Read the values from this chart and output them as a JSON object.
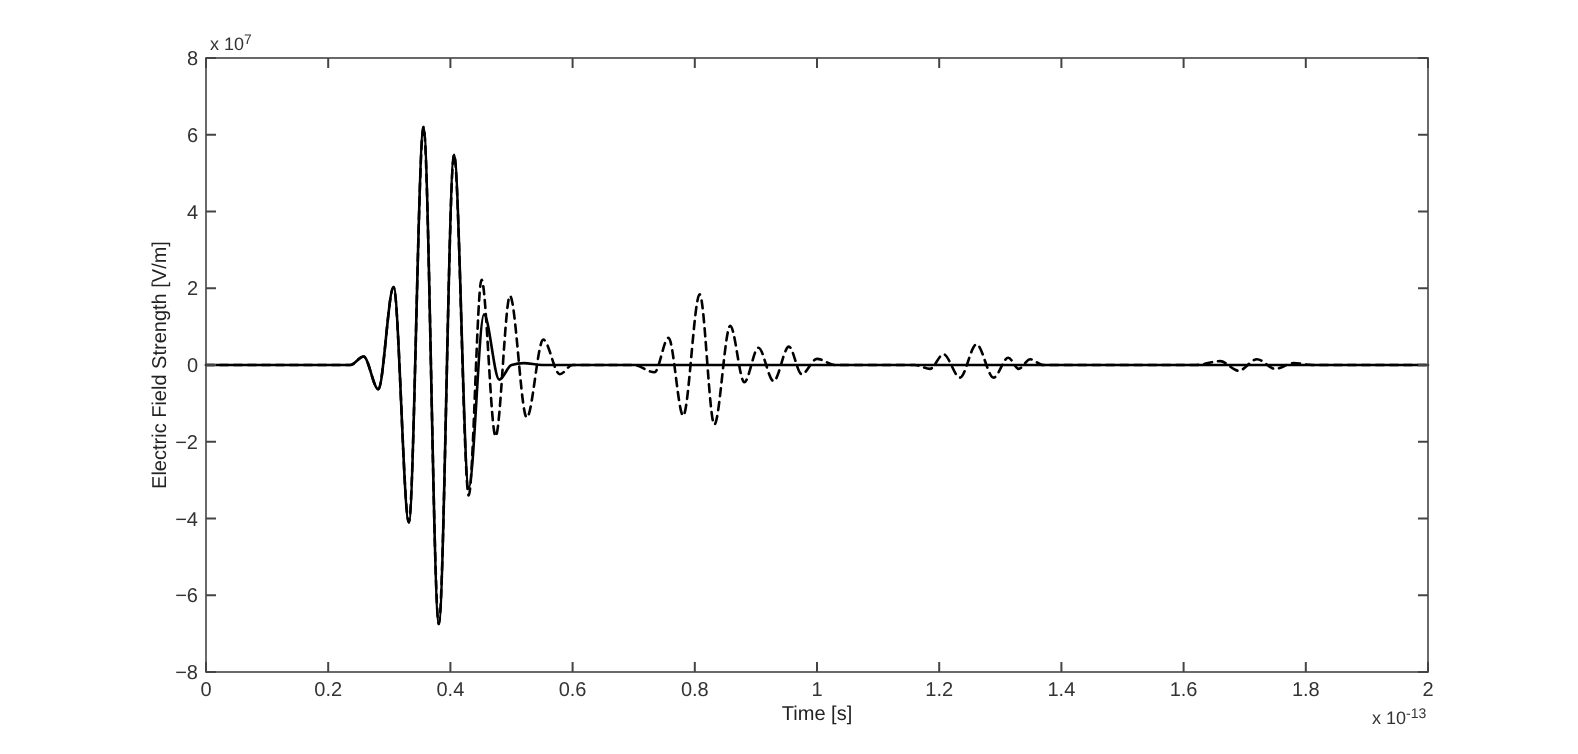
{
  "chart_data": {
    "type": "line",
    "xlabel": "Time [s]",
    "ylabel": "Electric Field Strength [V/m]",
    "annotations": [
      "x 10$^{7}$",
      "x 10$^{-13}$"
    ],
    "xlim": [
      0,
      2
    ],
    "xticks": [
      0,
      0.2,
      0.4,
      0.6,
      0.8,
      1,
      1.2,
      1.4,
      1.6,
      1.8,
      2
    ],
    "ylim": [
      -8,
      8
    ],
    "yticks": [
      -8,
      -6,
      -4,
      -2,
      0,
      2,
      4,
      6,
      8
    ],
    "grid": false,
    "marker": "none",
    "series": [
      {
        "color": "#000000",
        "line_style": "dashed",
        "x": [
          0,
          0.236,
          0.258,
          0.282,
          0.307,
          0.332,
          0.356,
          0.381,
          0.406,
          0.43,
          0.451,
          0.474,
          0.4975,
          0.525,
          0.552,
          0.579,
          0.6,
          0.7,
          0.734,
          0.757,
          0.781,
          0.808,
          0.832,
          0.858,
          0.881,
          0.904,
          0.929,
          0.954,
          0.975,
          1.0,
          1.03,
          1.16,
          1.185,
          1.207,
          1.234,
          1.261,
          1.289,
          1.313,
          1.33,
          1.349,
          1.37,
          1.62,
          1.66,
          1.69,
          1.72,
          1.75,
          1.78,
          1.81,
          2
        ],
        "values": [
          0,
          0,
          0.22,
          -0.63,
          2.03,
          -4.1,
          6.2,
          -6.75,
          5.48,
          -3.4,
          2.22,
          -1.86,
          1.8,
          -1.37,
          0.66,
          -0.24,
          0,
          0,
          -0.19,
          0.71,
          -1.32,
          1.84,
          -1.55,
          1.02,
          -0.45,
          0.45,
          -0.42,
          0.48,
          -0.24,
          0.16,
          0,
          0,
          -0.1,
          0.28,
          -0.33,
          0.54,
          -0.33,
          0.19,
          -0.1,
          0.15,
          0,
          0,
          0.1,
          -0.15,
          0.15,
          -0.1,
          0.05,
          0,
          0
        ]
      },
      {
        "color": "#000000",
        "line_style": "solid",
        "x": [
          0,
          0.236,
          0.258,
          0.282,
          0.307,
          0.332,
          0.356,
          0.381,
          0.406,
          0.43,
          0.455,
          0.48,
          0.5,
          0.52,
          0.55,
          2
        ],
        "values": [
          0,
          0,
          0.22,
          -0.63,
          2.03,
          -4.1,
          6.2,
          -6.75,
          5.48,
          -3.2,
          1.32,
          -0.38,
          0,
          0.05,
          0,
          0
        ]
      }
    ]
  }
}
